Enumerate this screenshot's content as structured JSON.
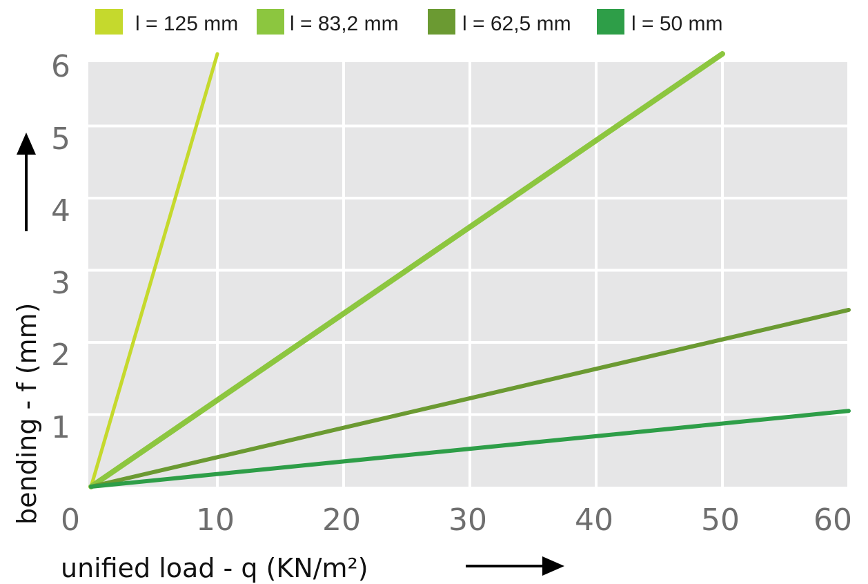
{
  "chart_data": {
    "type": "line",
    "title": "",
    "xlabel": "unified load - q (KN/m²)",
    "ylabel": "bending - f (mm)",
    "xlim": [
      0,
      60
    ],
    "ylim": [
      0,
      6
    ],
    "x_ticks": [
      "0",
      "10",
      "20",
      "30",
      "40",
      "50",
      "60"
    ],
    "y_ticks": [
      "1",
      "2",
      "3",
      "4",
      "5",
      "6"
    ],
    "grid": true,
    "legend_position": "top",
    "series": [
      {
        "name": "l = 125 mm",
        "color": "#c5d92d",
        "points": [
          [
            0,
            0
          ],
          [
            10,
            6
          ]
        ]
      },
      {
        "name": "l = 83,2 mm",
        "color": "#8cc63f",
        "points": [
          [
            0,
            0
          ],
          [
            50,
            6
          ]
        ]
      },
      {
        "name": "l = 62,5 mm",
        "color": "#6b9a32",
        "points": [
          [
            0,
            0
          ],
          [
            60,
            2.45
          ]
        ]
      },
      {
        "name": "l = 50 mm",
        "color": "#2e9e48",
        "points": [
          [
            0,
            0
          ],
          [
            60,
            1.05
          ]
        ]
      }
    ]
  }
}
